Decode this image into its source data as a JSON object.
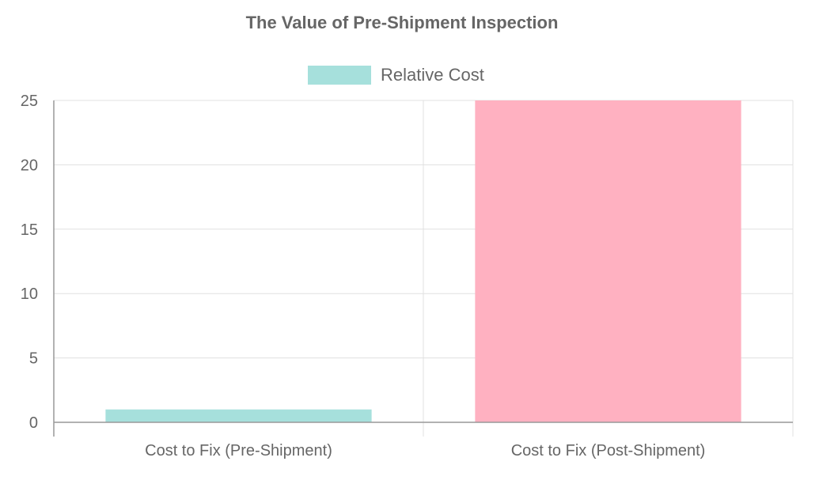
{
  "chart_data": {
    "type": "bar",
    "title": "The Value of Pre-Shipment Inspection",
    "categories": [
      "Cost to Fix (Pre-Shipment)",
      "Cost to Fix (Post-Shipment)"
    ],
    "series": [
      {
        "name": "Relative Cost",
        "values": [
          1,
          25
        ]
      }
    ],
    "bar_colors": [
      "#a6e0dc",
      "#ffb1c1"
    ],
    "legend_color": "#a6e0dc",
    "ylim": [
      0,
      25
    ],
    "yticks": [
      0,
      5,
      10,
      15,
      20,
      25
    ],
    "legend_position": "top-center",
    "grid": true,
    "text_color": "#666666",
    "grid_color": "#e0e0e0",
    "axis_color": "#999999"
  }
}
